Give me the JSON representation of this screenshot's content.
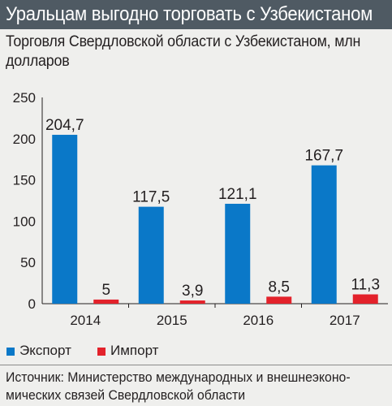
{
  "header": {
    "title": "Уральцам выгодно торговать с Узбекистаном"
  },
  "subtitle": {
    "line1": "Торговля Свердловской области с Узбекистаном, млн",
    "line2": "долларов"
  },
  "source": {
    "line1": "Источник: Министерство международных и внешнеэконо-",
    "line2": "мических связей Свердловской области"
  },
  "colors": {
    "header_bg": "#4f5a63",
    "export": "#0a78c8",
    "import": "#e3222b"
  },
  "chart_data": {
    "type": "bar",
    "categories": [
      "2014",
      "2015",
      "2016",
      "2017"
    ],
    "series": [
      {
        "name": "Экспорт",
        "values": [
          204.7,
          117.5,
          121.1,
          167.7
        ],
        "labels": [
          "204,7",
          "117,5",
          "121,1",
          "167,7"
        ]
      },
      {
        "name": "Импорт",
        "values": [
          5,
          3.9,
          8.5,
          11.3
        ],
        "labels": [
          "5",
          "3,9",
          "8,5",
          "11,3"
        ]
      }
    ],
    "ylim": [
      0,
      250
    ],
    "yticks": [
      "0",
      "50",
      "100",
      "150",
      "200",
      "250"
    ],
    "grid": false,
    "legend": "bottom-left"
  }
}
